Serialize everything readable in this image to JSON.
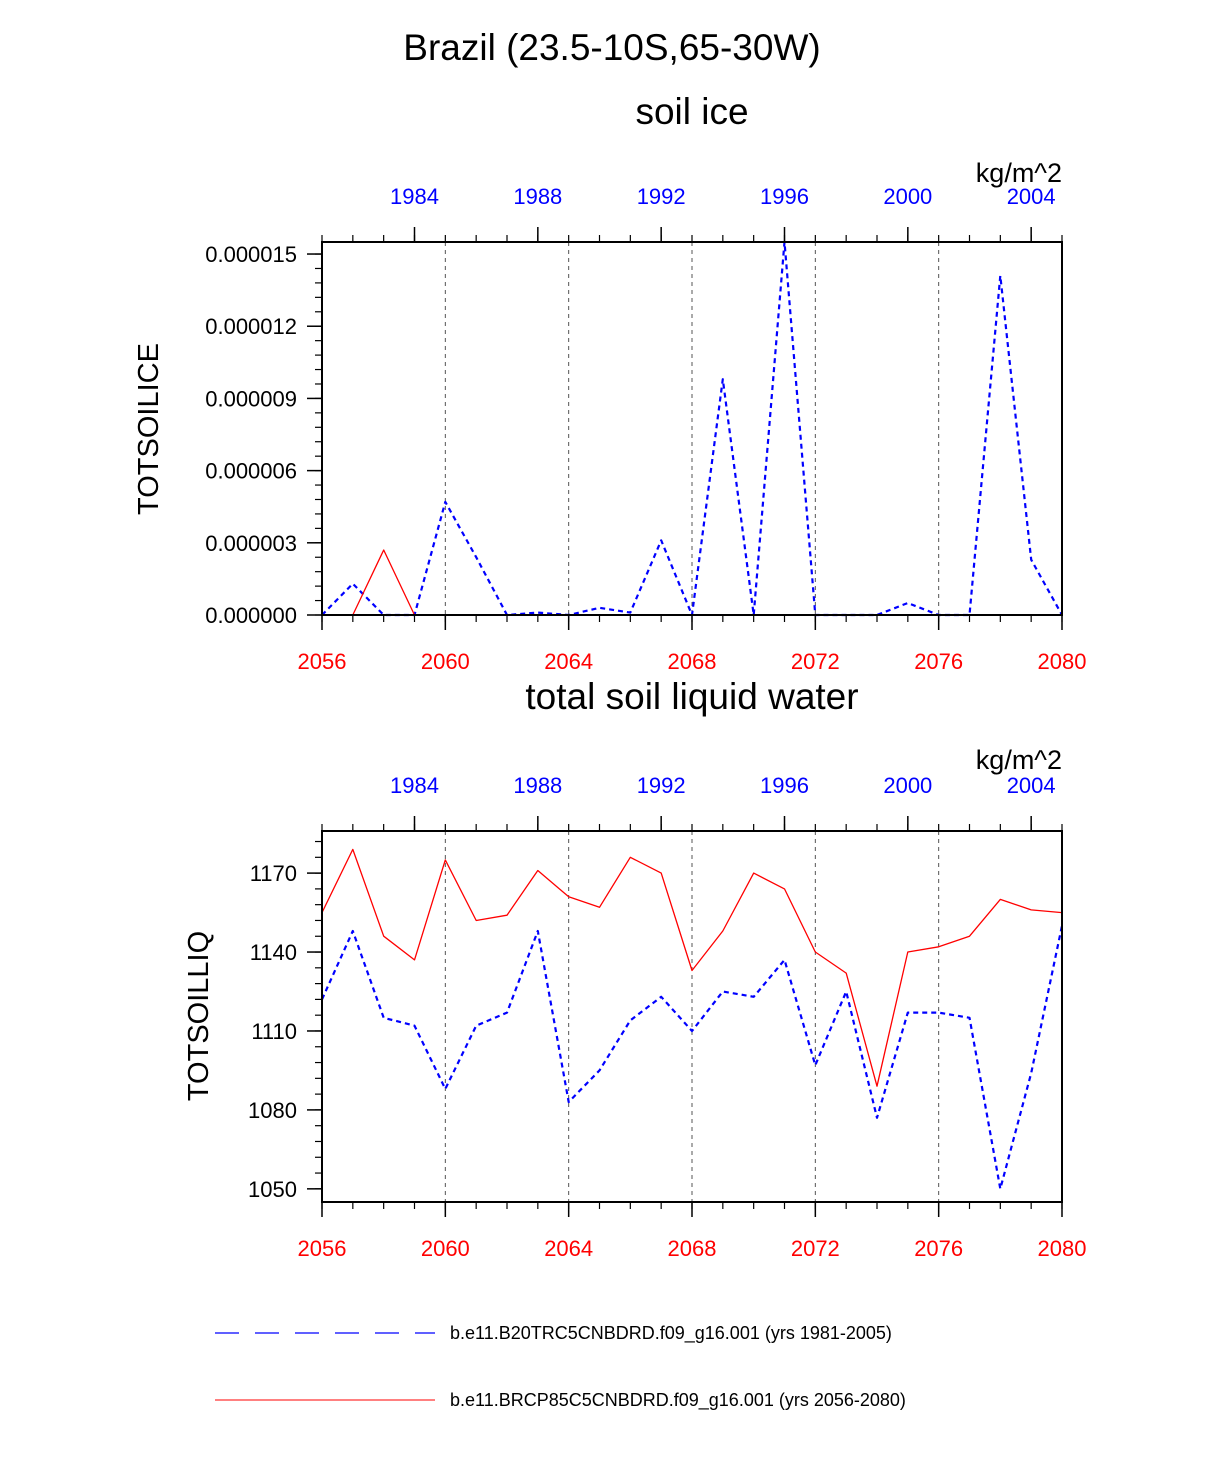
{
  "figure_title": "Brazil (23.5-10S,65-30W)",
  "colors": {
    "historical": "#0000ff",
    "future": "#ff0000",
    "axis": "#000000",
    "grid": "#555555"
  },
  "chart_data": [
    {
      "type": "line",
      "title": "soil ice",
      "units": "kg/m^2",
      "ylabel": "TOTSOILICE",
      "ylim": [
        0,
        1.55e-05
      ],
      "y_tick_values": [
        0,
        3e-06,
        6e-06,
        9e-06,
        1.2e-05,
        1.5e-05
      ],
      "y_tick_labels": [
        "0.000000",
        "0.000003",
        "0.000006",
        "0.000009",
        "0.000012",
        "0.000015"
      ],
      "x_bottom": {
        "range": [
          2056,
          2080
        ],
        "tick_labels": [
          "2056",
          "2060",
          "2064",
          "2068",
          "2072",
          "2076",
          "2080"
        ]
      },
      "x_top": {
        "range": [
          1981,
          2005
        ],
        "tick_labels": [
          "1984",
          "1988",
          "1992",
          "1996",
          "2000",
          "2004"
        ]
      },
      "series": [
        {
          "name": "b.e11.B20TRC5CNBDRD.f09_g16.001 (yrs 1981-2005)",
          "style": "dashed",
          "color": "#0000ff",
          "values": [
            0,
            1.3e-06,
            0,
            0,
            4.7e-06,
            2.4e-06,
            0,
            1e-07,
            0,
            3e-07,
            1e-07,
            3.1e-06,
            0,
            9.8e-06,
            0,
            1.55e-05,
            0,
            0,
            0,
            5e-07,
            0,
            0,
            1.41e-05,
            2.3e-06,
            0
          ]
        },
        {
          "name": "b.e11.BRCP85C5CNBDRD.f09_g16.001 (yrs 2056-2080)",
          "style": "solid",
          "color": "#ff0000",
          "values": [
            null,
            0,
            2.7e-06,
            0,
            null,
            null,
            null,
            null,
            null,
            null,
            null,
            null,
            null,
            null,
            null,
            null,
            null,
            null,
            null,
            null,
            null,
            null,
            null,
            null,
            null
          ]
        }
      ]
    },
    {
      "type": "line",
      "title": "total soil liquid water",
      "units": "kg/m^2",
      "ylabel": "TOTSOILLIQ",
      "ylim": [
        1045,
        1186
      ],
      "y_tick_values": [
        1050,
        1080,
        1110,
        1140,
        1170
      ],
      "y_tick_labels": [
        "1050",
        "1080",
        "1110",
        "1140",
        "1170"
      ],
      "x_bottom": {
        "range": [
          2056,
          2080
        ],
        "tick_labels": [
          "2056",
          "2060",
          "2064",
          "2068",
          "2072",
          "2076",
          "2080"
        ]
      },
      "x_top": {
        "range": [
          1981,
          2005
        ],
        "tick_labels": [
          "1984",
          "1988",
          "1992",
          "1996",
          "2000",
          "2004"
        ]
      },
      "series": [
        {
          "name": "b.e11.B20TRC5CNBDRD.f09_g16.001 (yrs 1981-2005)",
          "style": "dashed",
          "color": "#0000ff",
          "values": [
            1122,
            1148,
            1115,
            1112,
            1088,
            1112,
            1117,
            1148,
            1083,
            1095,
            1114,
            1123,
            1110,
            1125,
            1123,
            1137,
            1097,
            1125,
            1077,
            1117,
            1117,
            1115,
            1050,
            1094,
            1150
          ]
        },
        {
          "name": "b.e11.BRCP85C5CNBDRD.f09_g16.001 (yrs 2056-2080)",
          "style": "solid",
          "color": "#ff0000",
          "values": [
            1155,
            1179,
            1146,
            1137,
            1175,
            1152,
            1154,
            1171,
            1161,
            1157,
            1176,
            1170,
            1133,
            1148,
            1170,
            1164,
            1140,
            1132,
            1089,
            1140,
            1142,
            1146,
            1160,
            1156,
            1155
          ]
        }
      ]
    }
  ],
  "legend": [
    {
      "label": "b.e11.B20TRC5CNBDRD.f09_g16.001 (yrs 1981-2005)",
      "style": "dashed",
      "color": "#0000ff"
    },
    {
      "label": "b.e11.BRCP85C5CNBDRD.f09_g16.001 (yrs 2056-2080)",
      "style": "solid",
      "color": "#ff0000"
    }
  ]
}
